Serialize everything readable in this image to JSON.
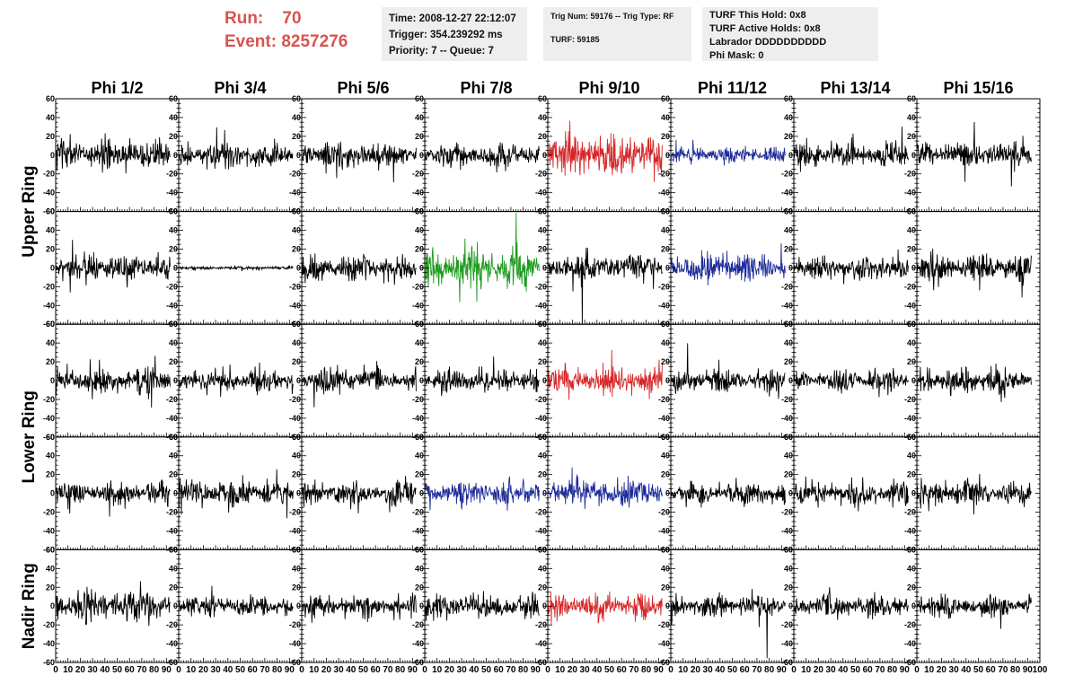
{
  "header": {
    "run_label": "Run:",
    "run_value": "70",
    "event_label": "Event:",
    "event_value": "8257276",
    "time": "Time: 2008-12-27 22:12:07",
    "trigger": "Trigger: 354.239292 ms",
    "priority": "Priority: 7 -- Queue: 7",
    "trig_num": "Trig Num: 59176 -- Trig Type: RF",
    "turf": "TURF: 59185",
    "turf_this_hold": "TURF This Hold: 0x8",
    "turf_active_holds": "TURF Active Holds: 0x8",
    "labrador": "Labrador DDDDDDDDDD",
    "phi_mask": "Phi Mask: 0"
  },
  "colors": {
    "accent_red": "#d9534f",
    "trace_default": "#000000",
    "trace_red": "#d62728",
    "trace_blue": "#1f2d9a",
    "trace_green": "#1e9a1e"
  },
  "chart_data": {
    "type": "line",
    "columns": [
      "Phi 1/2",
      "Phi 3/4",
      "Phi 5/6",
      "Phi 7/8",
      "Phi 9/10",
      "Phi 11/12",
      "Phi 13/14",
      "Phi 15/16"
    ],
    "row_groups": [
      {
        "label": "Upper Ring",
        "rows": [
          0,
          1
        ]
      },
      {
        "label": "Lower Ring",
        "rows": [
          2,
          3
        ]
      },
      {
        "label": "Nadir Ring",
        "rows": [
          4
        ]
      }
    ],
    "ylim": [
      -60,
      60
    ],
    "y_ticks": [
      -60,
      -40,
      -20,
      0,
      20,
      40,
      60
    ],
    "xlim": [
      0,
      100
    ],
    "x_ticks": [
      0,
      10,
      20,
      30,
      40,
      50,
      60,
      70,
      80,
      90,
      100
    ],
    "samples_per_trace": 260,
    "trace_end": 93,
    "panels": [
      [
        {
          "c": "black",
          "a": 16,
          "s": 1
        },
        {
          "c": "black",
          "a": 13,
          "s": 2
        },
        {
          "c": "black",
          "a": 15,
          "s": 3
        },
        {
          "c": "black",
          "a": 12,
          "s": 4
        },
        {
          "c": "red",
          "a": 24,
          "s": 5
        },
        {
          "c": "blue",
          "a": 9,
          "s": 6
        },
        {
          "c": "black",
          "a": 14,
          "s": 7
        },
        {
          "c": "black",
          "a": 15,
          "s": 8
        }
      ],
      [
        {
          "c": "black",
          "a": 15,
          "s": 11
        },
        {
          "c": "black",
          "a": 2,
          "s": 12
        },
        {
          "c": "black",
          "a": 14,
          "s": 13
        },
        {
          "c": "green",
          "a": 22,
          "s": 14
        },
        {
          "c": "black",
          "a": 13,
          "s": 15
        },
        {
          "c": "blue",
          "a": 16,
          "s": 16
        },
        {
          "c": "black",
          "a": 12,
          "s": 17
        },
        {
          "c": "black",
          "a": 15,
          "s": 18
        }
      ],
      [
        {
          "c": "black",
          "a": 14,
          "s": 21
        },
        {
          "c": "black",
          "a": 13,
          "s": 22
        },
        {
          "c": "black",
          "a": 14,
          "s": 23
        },
        {
          "c": "black",
          "a": 13,
          "s": 24
        },
        {
          "c": "red",
          "a": 15,
          "s": 25
        },
        {
          "c": "black",
          "a": 13,
          "s": 26
        },
        {
          "c": "black",
          "a": 12,
          "s": 27
        },
        {
          "c": "black",
          "a": 15,
          "s": 28
        }
      ],
      [
        {
          "c": "black",
          "a": 13,
          "s": 31
        },
        {
          "c": "black",
          "a": 14,
          "s": 32
        },
        {
          "c": "black",
          "a": 13,
          "s": 33
        },
        {
          "c": "blue",
          "a": 15,
          "s": 34
        },
        {
          "c": "blue",
          "a": 16,
          "s": 35
        },
        {
          "c": "black",
          "a": 12,
          "s": 36
        },
        {
          "c": "black",
          "a": 12,
          "s": 37
        },
        {
          "c": "black",
          "a": 13,
          "s": 38
        }
      ],
      [
        {
          "c": "black",
          "a": 17,
          "s": 41
        },
        {
          "c": "black",
          "a": 11,
          "s": 42
        },
        {
          "c": "black",
          "a": 12,
          "s": 43
        },
        {
          "c": "black",
          "a": 13,
          "s": 44
        },
        {
          "c": "red",
          "a": 14,
          "s": 45
        },
        {
          "c": "black",
          "a": 13,
          "s": 46
        },
        {
          "c": "black",
          "a": 13,
          "s": 47
        },
        {
          "c": "black",
          "a": 13,
          "s": 48
        }
      ]
    ]
  }
}
